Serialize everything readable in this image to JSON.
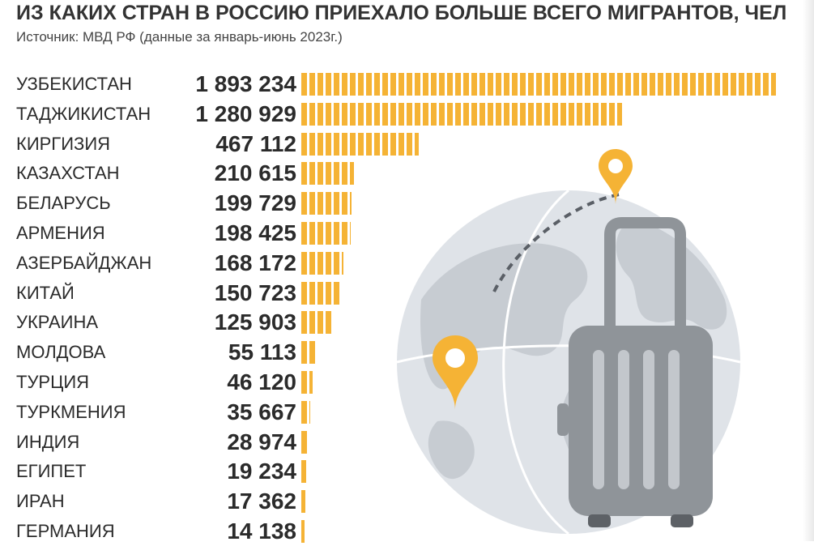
{
  "title": "ИЗ КАКИХ СТРАН В РОССИЮ ПРИЕХАЛО БОЛЬШЕ ВСЕГО МИГРАНТОВ, ЧЕЛ",
  "subtitle": "Источник: МВД РФ (данные за январь-июнь 2023г.)",
  "colors": {
    "bar": "#f5b335",
    "text": "#2b2b2b",
    "globe": "#dfe3e8",
    "land": "#c7ccd2",
    "suitcase": "#8f9499",
    "pin": "#f5b335"
  },
  "illustration": {
    "icons": [
      "globe-icon",
      "suitcase-icon",
      "location-pin-icon",
      "location-pin-icon"
    ]
  },
  "chart_data": {
    "type": "bar",
    "orientation": "horizontal",
    "title": "ИЗ КАКИХ СТРАН В РОССИЮ ПРИЕХАЛО БОЛЬШЕ ВСЕГО МИГРАНТОВ, ЧЕЛ",
    "subtitle": "Источник: МВД РФ (данные за январь-июнь 2023г.)",
    "categories": [
      "УЗБЕКИСТАН",
      "ТАДЖИКИСТАН",
      "КИРГИЗИЯ",
      "КАЗАХСТАН",
      "БЕЛАРУСЬ",
      "АРМЕНИЯ",
      "АЗЕРБАЙДЖАН",
      "КИТАЙ",
      "УКРАИНА",
      "МОЛДОВА",
      "ТУРЦИЯ",
      "ТУРКМЕНИЯ",
      "ИНДИЯ",
      "ЕГИПЕТ",
      "ИРАН",
      "ГЕРМАНИЯ"
    ],
    "values": [
      1893234,
      1280929,
      467112,
      210615,
      199729,
      198425,
      168172,
      150723,
      125903,
      55113,
      46120,
      35667,
      28974,
      19234,
      17362,
      14138
    ],
    "value_labels": [
      "1 893 234",
      "1 280 929",
      "467 112",
      "210 615",
      "199 729",
      "198 425",
      "168 172",
      "150 723",
      "125 903",
      "55 113",
      "46 120",
      "35 667",
      "28 974",
      "19 234",
      "17 362",
      "14 138"
    ],
    "xlim": [
      0,
      1893234
    ],
    "grid": false,
    "legend": "none"
  }
}
